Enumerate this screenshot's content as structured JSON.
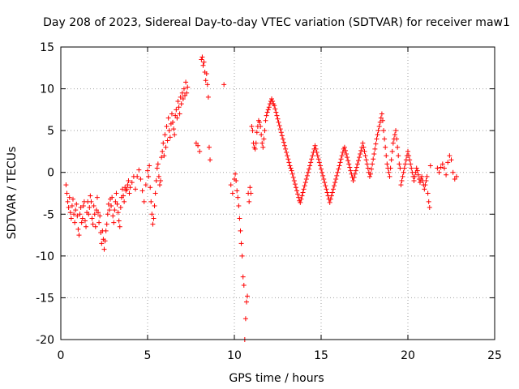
{
  "chart_data": {
    "type": "scatter",
    "title": "Day 208 of 2023, Sidereal Day-to-day VTEC variation (SDTVAR) for receiver maw1",
    "xlabel": "GPS time / hours",
    "ylabel": "SDTVAR / TECUs",
    "xlim": [
      0,
      25
    ],
    "ylim": [
      -20,
      15
    ],
    "x_ticks": [
      0,
      5,
      10,
      15,
      20,
      25
    ],
    "y_ticks": [
      -20,
      -15,
      -10,
      -5,
      0,
      5,
      10,
      15
    ],
    "x_tick_labels": [
      "0",
      "5",
      "10",
      "15",
      "20",
      "25"
    ],
    "y_tick_labels": [
      "-20",
      "-15",
      "-10",
      "-5",
      "0",
      "5",
      "10",
      "15"
    ],
    "grid": true,
    "marker": "+",
    "color": "#ff0000",
    "series": [
      {
        "name": "SDTVAR",
        "x": [
          0.3,
          0.35,
          0.4,
          0.45,
          0.5,
          0.55,
          0.6,
          0.65,
          0.7,
          0.75,
          0.8,
          0.85,
          0.9,
          0.95,
          1.0,
          1.05,
          1.1,
          1.15,
          1.2,
          1.25,
          1.3,
          1.35,
          1.4,
          1.45,
          1.5,
          1.55,
          1.6,
          1.65,
          1.7,
          1.75,
          1.8,
          1.85,
          1.9,
          1.95,
          2.0,
          2.05,
          2.1,
          2.15,
          2.2,
          2.25,
          2.3,
          2.35,
          2.4,
          2.45,
          2.5,
          2.55,
          2.6,
          2.65,
          2.7,
          2.75,
          2.8,
          2.85,
          2.9,
          2.95,
          3.0,
          3.05,
          3.1,
          3.15,
          3.2,
          3.25,
          3.3,
          3.35,
          3.4,
          3.45,
          3.5,
          3.55,
          3.6,
          3.65,
          3.7,
          3.75,
          3.8,
          3.85,
          3.9,
          3.95,
          4.0,
          4.1,
          4.2,
          4.3,
          4.4,
          4.5,
          4.6,
          4.7,
          4.8,
          4.9,
          5.0,
          5.05,
          5.1,
          5.15,
          5.2,
          5.25,
          5.3,
          5.35,
          5.4,
          5.45,
          5.5,
          5.55,
          5.6,
          5.65,
          5.7,
          5.75,
          5.8,
          5.85,
          5.9,
          5.95,
          6.0,
          6.05,
          6.1,
          6.15,
          6.2,
          6.25,
          6.3,
          6.35,
          6.4,
          6.45,
          6.5,
          6.55,
          6.6,
          6.65,
          6.7,
          6.75,
          6.8,
          6.85,
          6.9,
          6.95,
          7.0,
          7.05,
          7.1,
          7.15,
          7.2,
          7.25,
          7.3,
          7.8,
          7.9,
          8.0,
          8.1,
          8.15,
          8.2,
          8.25,
          8.3,
          8.35,
          8.4,
          8.45,
          8.5,
          8.55,
          8.6,
          9.4,
          9.8,
          9.9,
          10.0,
          10.05,
          10.1,
          10.15,
          10.2,
          10.25,
          10.3,
          10.35,
          10.4,
          10.45,
          10.5,
          10.55,
          10.6,
          10.65,
          10.7,
          10.75,
          10.8,
          10.85,
          10.9,
          10.95,
          11.0,
          11.05,
          11.1,
          11.15,
          11.2,
          11.25,
          11.3,
          11.35,
          11.4,
          11.45,
          11.5,
          11.55,
          11.6,
          11.65,
          11.7,
          11.75,
          11.8,
          11.85,
          11.9,
          11.95,
          12.0,
          12.05,
          12.1,
          12.15,
          12.2,
          12.25,
          12.3,
          12.35,
          12.4,
          12.45,
          12.5,
          12.55,
          12.6,
          12.65,
          12.7,
          12.75,
          12.8,
          12.85,
          12.9,
          12.95,
          13.0,
          13.05,
          13.1,
          13.15,
          13.2,
          13.25,
          13.3,
          13.35,
          13.4,
          13.45,
          13.5,
          13.55,
          13.6,
          13.65,
          13.7,
          13.75,
          13.8,
          13.85,
          13.9,
          13.95,
          14.0,
          14.05,
          14.1,
          14.15,
          14.2,
          14.25,
          14.3,
          14.35,
          14.4,
          14.45,
          14.5,
          14.55,
          14.6,
          14.65,
          14.7,
          14.75,
          14.8,
          14.85,
          14.9,
          14.95,
          15.0,
          15.05,
          15.1,
          15.15,
          15.2,
          15.25,
          15.3,
          15.35,
          15.4,
          15.45,
          15.5,
          15.55,
          15.6,
          15.65,
          15.7,
          15.75,
          15.8,
          15.85,
          15.9,
          15.95,
          16.0,
          16.05,
          16.1,
          16.15,
          16.2,
          16.25,
          16.3,
          16.35,
          16.4,
          16.45,
          16.5,
          16.55,
          16.6,
          16.65,
          16.7,
          16.75,
          16.8,
          16.85,
          16.9,
          16.95,
          17.0,
          17.05,
          17.1,
          17.15,
          17.2,
          17.25,
          17.3,
          17.35,
          17.4,
          17.45,
          17.5,
          17.55,
          17.6,
          17.65,
          17.7,
          17.75,
          17.8,
          17.85,
          17.9,
          17.95,
          18.0,
          18.05,
          18.1,
          18.15,
          18.2,
          18.25,
          18.3,
          18.35,
          18.4,
          18.45,
          18.5,
          18.55,
          18.6,
          18.65,
          18.7,
          18.75,
          18.8,
          18.85,
          18.9,
          18.95,
          19.0,
          19.05,
          19.1,
          19.15,
          19.2,
          19.25,
          19.3,
          19.35,
          19.4,
          19.45,
          19.5,
          19.55,
          19.6,
          19.65,
          19.7,
          19.75,
          19.8,
          19.85,
          19.9,
          19.95,
          20.0,
          20.05,
          20.1,
          20.15,
          20.2,
          20.25,
          20.3,
          20.35,
          20.4,
          20.45,
          20.5,
          20.55,
          20.6,
          20.65,
          20.7,
          20.75,
          20.8,
          20.85,
          20.9,
          20.95,
          21.0,
          21.05,
          21.1,
          21.15,
          21.2,
          21.25,
          21.3,
          21.7,
          21.8,
          21.9,
          22.0,
          22.1,
          22.2,
          22.3,
          22.4,
          22.5,
          22.6,
          22.7,
          22.8
        ],
        "y": [
          -1.5,
          -2.5,
          -3.5,
          -4.2,
          -3.0,
          -4.8,
          -5.5,
          -4.0,
          -3.2,
          -5.0,
          -6.0,
          -4.5,
          -3.8,
          -5.2,
          -6.8,
          -7.5,
          -5.0,
          -4.2,
          -6.0,
          -5.5,
          -4.0,
          -3.5,
          -5.8,
          -6.5,
          -4.8,
          -3.5,
          -5.0,
          -4.2,
          -2.8,
          -3.5,
          -5.5,
          -6.2,
          -4.0,
          -5.0,
          -6.5,
          -4.5,
          -3.0,
          -4.8,
          -6.0,
          -5.2,
          -7.2,
          -8.5,
          -7.0,
          -8.0,
          -9.2,
          -8.2,
          -7.0,
          -6.2,
          -5.0,
          -3.8,
          -4.5,
          -3.2,
          -4.0,
          -3.0,
          -5.2,
          -6.0,
          -4.5,
          -3.5,
          -2.5,
          -3.8,
          -4.8,
          -5.8,
          -6.5,
          -4.2,
          -3.0,
          -2.0,
          -2.8,
          -3.5,
          -1.8,
          -2.2,
          -2.0,
          -1.5,
          -1.0,
          -2.5,
          -1.8,
          -1.2,
          -0.5,
          -2.0,
          -0.5,
          0.3,
          -0.8,
          -2.2,
          -3.5,
          -1.5,
          0.2,
          -0.5,
          0.8,
          -1.8,
          -3.5,
          -5.0,
          -6.2,
          -5.5,
          -4.0,
          -2.5,
          -1.0,
          0.5,
          1.0,
          -0.5,
          -1.5,
          -1.0,
          1.8,
          2.5,
          3.5,
          2.0,
          4.5,
          3.0,
          5.5,
          3.8,
          6.5,
          5.0,
          4.2,
          5.8,
          7.0,
          6.0,
          5.2,
          4.5,
          6.8,
          7.5,
          6.5,
          8.5,
          7.8,
          7.0,
          9.0,
          8.2,
          9.5,
          8.8,
          10.0,
          9.2,
          10.8,
          9.5,
          10.2,
          3.5,
          3.2,
          2.5,
          13.5,
          13.8,
          12.8,
          13.2,
          12.0,
          11.0,
          11.8,
          10.5,
          9.0,
          3.0,
          1.5,
          10.5,
          -1.5,
          -2.5,
          -0.8,
          -0.2,
          -1.0,
          -2.2,
          -3.0,
          -4.0,
          -5.5,
          -7.0,
          -8.5,
          -10.0,
          -12.5,
          -13.5,
          -20.0,
          -17.5,
          -15.5,
          -14.8,
          -2.5,
          -3.5,
          -1.8,
          -2.5,
          5.5,
          5.0,
          3.5,
          3.0,
          2.8,
          3.5,
          4.8,
          5.5,
          6.2,
          6.0,
          5.5,
          4.5,
          3.5,
          3.0,
          4.0,
          5.0,
          6.2,
          6.8,
          7.2,
          7.5,
          7.8,
          8.2,
          8.5,
          8.8,
          8.5,
          8.2,
          8.0,
          7.6,
          7.2,
          6.8,
          6.4,
          6.0,
          5.6,
          5.2,
          4.8,
          4.4,
          4.0,
          3.6,
          3.2,
          2.8,
          2.4,
          2.0,
          1.6,
          1.2,
          0.8,
          0.5,
          0.2,
          -0.2,
          -0.6,
          -1.0,
          -1.4,
          -1.8,
          -2.2,
          -2.6,
          -3.0,
          -3.4,
          -3.6,
          -3.2,
          -2.8,
          -2.4,
          -2.0,
          -1.6,
          -1.2,
          -0.8,
          -0.4,
          0.0,
          0.4,
          0.8,
          1.2,
          1.6,
          2.0,
          2.4,
          2.8,
          3.2,
          2.8,
          2.4,
          2.0,
          1.6,
          1.2,
          0.8,
          0.4,
          0.0,
          -0.4,
          -0.8,
          -1.2,
          -1.6,
          -2.0,
          -2.4,
          -2.8,
          -3.2,
          -3.6,
          -3.2,
          -2.8,
          -2.4,
          -2.0,
          -1.6,
          -1.2,
          -0.8,
          -0.4,
          0.0,
          0.4,
          0.8,
          1.2,
          1.6,
          2.0,
          2.4,
          2.8,
          3.0,
          2.6,
          2.2,
          1.8,
          1.4,
          1.0,
          0.6,
          0.2,
          -0.2,
          -0.6,
          -1.0,
          -0.6,
          -0.2,
          0.2,
          0.6,
          1.0,
          1.4,
          1.8,
          2.2,
          2.6,
          3.0,
          3.5,
          3.0,
          2.5,
          2.0,
          1.5,
          1.0,
          0.5,
          0.0,
          -0.5,
          -0.2,
          0.4,
          1.0,
          1.6,
          2.2,
          2.8,
          3.4,
          4.0,
          4.5,
          5.0,
          5.5,
          6.0,
          6.5,
          7.0,
          6.2,
          5.0,
          4.0,
          3.0,
          2.0,
          1.0,
          0.5,
          0.0,
          -0.5,
          0.5,
          1.5,
          2.5,
          3.5,
          4.0,
          4.5,
          5.0,
          4.0,
          3.0,
          2.0,
          1.0,
          0.5,
          -1.5,
          -1.0,
          -0.5,
          0.0,
          0.5,
          1.0,
          1.5,
          2.0,
          2.5,
          2.0,
          1.5,
          1.0,
          0.5,
          0.0,
          -0.5,
          -1.0,
          -0.5,
          0.0,
          0.5,
          0.2,
          -0.3,
          -0.8,
          -1.2,
          -0.8,
          -0.5,
          -1.0,
          -1.5,
          -2.0,
          -1.5,
          -1.0,
          -0.5,
          -2.5,
          -3.5,
          -4.2,
          0.8,
          0.5,
          0.0,
          0.6,
          1.0,
          0.5,
          -0.3,
          1.2,
          2.0,
          1.5,
          0.0,
          -0.8,
          -0.5
        ]
      }
    ]
  }
}
